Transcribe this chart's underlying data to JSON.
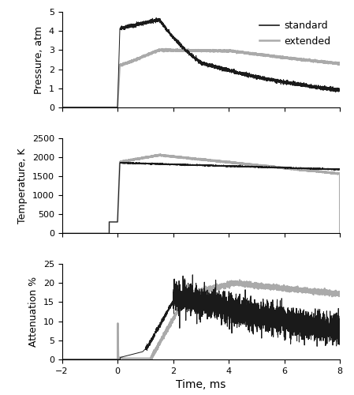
{
  "xlim": [
    -2,
    8
  ],
  "xticks": [
    -2,
    0,
    2,
    4,
    6,
    8
  ],
  "xlabel": "Time, ms",
  "pressure_ylabel": "Pressure, atm",
  "temperature_ylabel": "Temperature, K",
  "attenuation_ylabel": "Attenuation %",
  "pressure_ylim": [
    0.0,
    5.0
  ],
  "pressure_yticks": [
    0.0,
    1.0,
    2.0,
    3.0,
    4.0,
    5.0
  ],
  "temperature_ylim": [
    0,
    2500
  ],
  "temperature_yticks": [
    0,
    500,
    1000,
    1500,
    2000,
    2500
  ],
  "attenuation_ylim": [
    0,
    25
  ],
  "attenuation_yticks": [
    0,
    5,
    10,
    15,
    20,
    25
  ],
  "color_standard": "#1a1a1a",
  "color_extended": "#aaaaaa",
  "lw_standard": 0.7,
  "lw_extended": 1.5,
  "legend_labels": [
    "standard",
    "extended"
  ],
  "legend_fontsize": 9,
  "tick_labelsize": 8,
  "label_fontsize": 9,
  "xlabel_fontsize": 10,
  "fig_width": 4.49,
  "fig_height": 5.0,
  "dpi": 100
}
